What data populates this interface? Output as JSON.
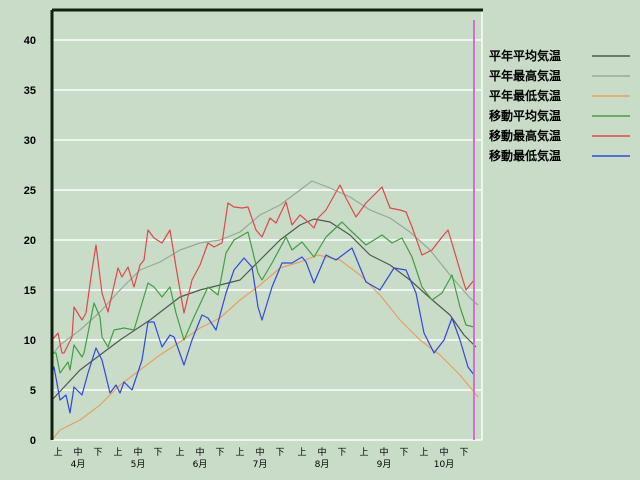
{
  "chart_data": {
    "type": "line",
    "title": "",
    "xlabel": "",
    "ylabel": "",
    "ylim": [
      0,
      43
    ],
    "yticks": [
      "0",
      "5",
      "10",
      "15",
      "20",
      "25",
      "30",
      "35",
      "40"
    ],
    "x_range": [
      "4/1",
      "10/31"
    ],
    "grid": true,
    "legend_position": "right",
    "dekad_labels": [
      "上",
      "中",
      "下"
    ],
    "month_labels": [
      "4月",
      "5月",
      "6月",
      "7月",
      "8月",
      "9月",
      "10月"
    ],
    "marker_date": "10/29",
    "marker_color": "#d070d0",
    "background_color": "#c8dcc8",
    "series": [
      {
        "name": "平年平均気温",
        "color": "#505850",
        "points": [
          [
            "4/1",
            4.0
          ],
          [
            "4/15",
            7.0
          ],
          [
            "4/25",
            8.5
          ],
          [
            "5/5",
            10
          ],
          [
            "5/20",
            12
          ],
          [
            "6/4",
            14.3
          ],
          [
            "6/14",
            15
          ],
          [
            "6/24",
            15.5
          ],
          [
            "7/4",
            16
          ],
          [
            "7/14",
            18
          ],
          [
            "7/24",
            20
          ],
          [
            "8/3",
            21.5
          ],
          [
            "8/10",
            22.1
          ],
          [
            "8/18",
            21.8
          ],
          [
            "8/28",
            20.5
          ],
          [
            "9/7",
            18.5
          ],
          [
            "9/17",
            17.5
          ],
          [
            "9/27",
            16
          ],
          [
            "10/7",
            14.2
          ],
          [
            "10/17",
            12.5
          ],
          [
            "10/24",
            10.5
          ],
          [
            "10/30",
            9.3
          ]
        ]
      },
      {
        "name": "平年最高気温",
        "color": "#98a898",
        "points": [
          [
            "4/1",
            8.5
          ],
          [
            "4/5",
            9.5
          ],
          [
            "4/15",
            11
          ],
          [
            "4/25",
            12.8
          ],
          [
            "5/5",
            15
          ],
          [
            "5/15",
            17
          ],
          [
            "5/25",
            17.8
          ],
          [
            "6/4",
            19
          ],
          [
            "6/14",
            19.7
          ],
          [
            "6/24",
            20
          ],
          [
            "7/4",
            20.8
          ],
          [
            "7/14",
            22.5
          ],
          [
            "7/24",
            23.5
          ],
          [
            "8/3",
            25
          ],
          [
            "8/9",
            25.9
          ],
          [
            "8/18",
            25.2
          ],
          [
            "8/28",
            24.3
          ],
          [
            "9/7",
            23
          ],
          [
            "9/17",
            22.2
          ],
          [
            "9/27",
            20.8
          ],
          [
            "10/7",
            19
          ],
          [
            "10/17",
            16.5
          ],
          [
            "10/27",
            14.2
          ],
          [
            "10/31",
            13.5
          ]
        ]
      },
      {
        "name": "平年最低気温",
        "color": "#e8a060",
        "points": [
          [
            "4/1",
            0
          ],
          [
            "4/5",
            1
          ],
          [
            "4/15",
            2
          ],
          [
            "4/25",
            3.5
          ],
          [
            "5/5",
            5.5
          ],
          [
            "5/15",
            7
          ],
          [
            "5/25",
            8.5
          ],
          [
            "6/4",
            9.8
          ],
          [
            "6/14",
            11.2
          ],
          [
            "6/24",
            12.2
          ],
          [
            "7/4",
            14
          ],
          [
            "7/14",
            15.5
          ],
          [
            "7/24",
            17.2
          ],
          [
            "8/3",
            17.8
          ],
          [
            "8/12",
            18.5
          ],
          [
            "8/23",
            18
          ],
          [
            "9/2",
            16.5
          ],
          [
            "9/12",
            14.5
          ],
          [
            "9/22",
            12
          ],
          [
            "10/2",
            10
          ],
          [
            "10/12",
            8.5
          ],
          [
            "10/22",
            6.5
          ],
          [
            "10/31",
            4.3
          ]
        ]
      },
      {
        "name": "移動平均気温",
        "color": "#40a040",
        "points": [
          [
            "4/1",
            8.7
          ],
          [
            "4/3",
            8.7
          ],
          [
            "4/5",
            6.7
          ],
          [
            "4/9",
            7.8
          ],
          [
            "4/10",
            7
          ],
          [
            "4/12",
            9.5
          ],
          [
            "4/16",
            8.3
          ],
          [
            "4/17",
            8.7
          ],
          [
            "4/22",
            13.7
          ],
          [
            "4/25",
            12.3
          ],
          [
            "4/26",
            10.3
          ],
          [
            "4/29",
            9.3
          ],
          [
            "5/2",
            11
          ],
          [
            "5/7",
            11.2
          ],
          [
            "5/12",
            11
          ],
          [
            "5/19",
            15.7
          ],
          [
            "5/22",
            15.3
          ],
          [
            "5/26",
            14.3
          ],
          [
            "5/30",
            15.3
          ],
          [
            "6/2",
            12.7
          ],
          [
            "6/6",
            10
          ],
          [
            "6/11",
            12.3
          ],
          [
            "6/18",
            15.3
          ],
          [
            "6/23",
            14.5
          ],
          [
            "6/27",
            18.7
          ],
          [
            "7/1",
            20
          ],
          [
            "7/8",
            20.8
          ],
          [
            "7/13",
            16.7
          ],
          [
            "7/15",
            16
          ],
          [
            "7/20",
            17.7
          ],
          [
            "7/27",
            20.3
          ],
          [
            "7/30",
            19
          ],
          [
            "8/4",
            19.8
          ],
          [
            "8/10",
            18.3
          ],
          [
            "8/16",
            20.3
          ],
          [
            "8/24",
            21.8
          ],
          [
            "8/28",
            21
          ],
          [
            "9/5",
            19.5
          ],
          [
            "9/13",
            20.5
          ],
          [
            "9/18",
            19.7
          ],
          [
            "9/23",
            20.2
          ],
          [
            "9/28",
            18.3
          ],
          [
            "10/3",
            15.3
          ],
          [
            "10/8",
            14
          ],
          [
            "10/13",
            14.7
          ],
          [
            "10/18",
            16.5
          ],
          [
            "10/22",
            13.3
          ],
          [
            "10/25",
            11.5
          ],
          [
            "10/29",
            11.3
          ]
        ]
      },
      {
        "name": "移動最高気温",
        "color": "#e04848",
        "points": [
          [
            "4/1",
            10
          ],
          [
            "4/4",
            10.7
          ],
          [
            "4/6",
            8.7
          ],
          [
            "4/7",
            8.7
          ],
          [
            "4/11",
            10.3
          ],
          [
            "4/12",
            13.3
          ],
          [
            "4/16",
            12
          ],
          [
            "4/18",
            12.7
          ],
          [
            "4/21",
            17
          ],
          [
            "4/23",
            19.5
          ],
          [
            "4/26",
            14.7
          ],
          [
            "4/29",
            12.8
          ],
          [
            "5/4",
            17.2
          ],
          [
            "5/6",
            16.3
          ],
          [
            "5/9",
            17.3
          ],
          [
            "5/12",
            15.3
          ],
          [
            "5/15",
            17.5
          ],
          [
            "5/17",
            18
          ],
          [
            "5/19",
            21
          ],
          [
            "5/22",
            20.2
          ],
          [
            "5/26",
            19.7
          ],
          [
            "5/30",
            21
          ],
          [
            "6/2",
            17.3
          ],
          [
            "6/6",
            12.7
          ],
          [
            "6/10",
            16
          ],
          [
            "6/14",
            17.5
          ],
          [
            "6/18",
            19.7
          ],
          [
            "6/21",
            19.3
          ],
          [
            "6/25",
            19.7
          ],
          [
            "6/28",
            23.7
          ],
          [
            "7/1",
            23.3
          ],
          [
            "7/5",
            23.2
          ],
          [
            "7/8",
            23.3
          ],
          [
            "7/12",
            21
          ],
          [
            "7/15",
            20.3
          ],
          [
            "7/19",
            22.2
          ],
          [
            "7/22",
            21.7
          ],
          [
            "7/27",
            23.8
          ],
          [
            "7/30",
            21.5
          ],
          [
            "8/3",
            22.5
          ],
          [
            "8/6",
            22
          ],
          [
            "8/10",
            21.2
          ],
          [
            "8/12",
            22.2
          ],
          [
            "8/16",
            23
          ],
          [
            "8/23",
            25.5
          ],
          [
            "8/26",
            24.2
          ],
          [
            "8/31",
            22.3
          ],
          [
            "9/5",
            23.7
          ],
          [
            "9/13",
            25.3
          ],
          [
            "9/17",
            23.2
          ],
          [
            "9/22",
            23
          ],
          [
            "9/25",
            22.8
          ],
          [
            "9/28",
            21.3
          ],
          [
            "10/3",
            18.5
          ],
          [
            "10/8",
            19
          ],
          [
            "10/13",
            20.3
          ],
          [
            "10/16",
            21
          ],
          [
            "10/19",
            19
          ],
          [
            "10/23",
            16.3
          ],
          [
            "10/25",
            15
          ],
          [
            "10/29",
            16
          ]
        ]
      },
      {
        "name": "移動最低気温",
        "color": "#3048e0",
        "points": [
          [
            "4/1",
            6.7
          ],
          [
            "4/2",
            7.3
          ],
          [
            "4/5",
            4
          ],
          [
            "4/8",
            4.5
          ],
          [
            "4/10",
            2.7
          ],
          [
            "4/12",
            5.3
          ],
          [
            "4/16",
            4.5
          ],
          [
            "4/19",
            6.7
          ],
          [
            "4/23",
            9.2
          ],
          [
            "4/26",
            8
          ],
          [
            "4/30",
            4.7
          ],
          [
            "5/3",
            5.5
          ],
          [
            "5/5",
            4.7
          ],
          [
            "5/7",
            5.8
          ],
          [
            "5/11",
            5
          ],
          [
            "5/16",
            8
          ],
          [
            "5/19",
            11.8
          ],
          [
            "5/22",
            11.8
          ],
          [
            "5/26",
            9.3
          ],
          [
            "5/30",
            10.5
          ],
          [
            "6/1",
            10.3
          ],
          [
            "6/6",
            7.5
          ],
          [
            "6/10",
            10
          ],
          [
            "6/15",
            12.5
          ],
          [
            "6/18",
            12.2
          ],
          [
            "6/22",
            11
          ],
          [
            "6/27",
            14.7
          ],
          [
            "7/1",
            17
          ],
          [
            "7/6",
            18.2
          ],
          [
            "7/10",
            17.3
          ],
          [
            "7/13",
            13.3
          ],
          [
            "7/15",
            12
          ],
          [
            "7/20",
            15.3
          ],
          [
            "7/25",
            17.7
          ],
          [
            "7/30",
            17.7
          ],
          [
            "8/4",
            18.3
          ],
          [
            "8/6",
            17.8
          ],
          [
            "8/10",
            15.7
          ],
          [
            "8/16",
            18.5
          ],
          [
            "8/21",
            18
          ],
          [
            "8/29",
            19.2
          ],
          [
            "9/5",
            15.8
          ],
          [
            "9/12",
            15
          ],
          [
            "9/19",
            17.2
          ],
          [
            "9/25",
            17
          ],
          [
            "9/30",
            14.7
          ],
          [
            "10/4",
            10.7
          ],
          [
            "10/9",
            8.7
          ],
          [
            "10/14",
            10
          ],
          [
            "10/18",
            12.2
          ],
          [
            "10/22",
            10
          ],
          [
            "10/26",
            7.3
          ],
          [
            "10/29",
            6.5
          ]
        ]
      }
    ]
  }
}
